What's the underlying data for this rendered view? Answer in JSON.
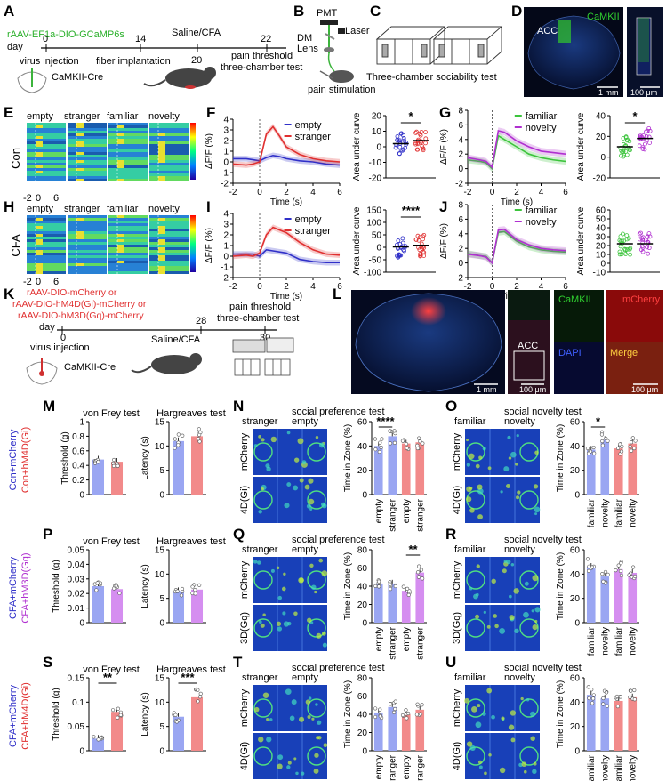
{
  "figure": {
    "panel_letters": [
      "A",
      "B",
      "C",
      "D",
      "E",
      "F",
      "G",
      "H",
      "I",
      "J",
      "K",
      "L",
      "M",
      "N",
      "O",
      "P",
      "Q",
      "R",
      "S",
      "T",
      "U"
    ],
    "colors": {
      "red": "#e03030",
      "blue": "#3030c8",
      "green": "#3cc43c",
      "purple": "#b030d0",
      "bar_blue": "#9aa6f2",
      "bar_red": "#f28a8a",
      "bar_purple": "#d58ef0",
      "heat_bg": "#1840b8"
    }
  },
  "panelA": {
    "construct": "rAAV-EF1a-DIO-GCaMP6s",
    "day_label": "day",
    "timeline_days": [
      "0",
      "14",
      "20",
      "22"
    ],
    "events": [
      "virus injection",
      "fiber implantation",
      "Saline/CFA",
      "pain threshold",
      "three-chamber test"
    ],
    "mouse_label": "CaMKII-Cre"
  },
  "panelB": {
    "labels": [
      "PMT",
      "Laser",
      "DM",
      "Lens"
    ],
    "caption": "pain stimulation"
  },
  "panelC": {
    "caption": "Three-chamber sociability test"
  },
  "panelD": {
    "region": "ACC",
    "marker": "CaMKII",
    "scale1": "1 mm",
    "scale2": "100 μm"
  },
  "heatmapE": {
    "row_label": "Con",
    "columns": [
      "empty",
      "stranger",
      "familiar",
      "novelty"
    ],
    "x_ticks": [
      "-2",
      "0",
      "6"
    ]
  },
  "heatmapH": {
    "row_label": "CFA",
    "columns": [
      "empty",
      "stranger",
      "familiar",
      "novelty"
    ],
    "x_ticks": [
      "-2",
      "0",
      "6"
    ]
  },
  "panelK": {
    "constructs": [
      "rAAV-DIO-mCherry or",
      "rAAV-DIO-hM4D(Gi)-mCherry or",
      "rAAV-DIO-hM3D(Gq)-mCherry"
    ],
    "day_label": "day",
    "timeline_days": [
      "0",
      "28",
      "30"
    ],
    "events": [
      "virus injection",
      "Saline/CFA",
      "pain threshold",
      "three-chamber test"
    ],
    "mouse_label": "CaMKII-Cre"
  },
  "panelL": {
    "region": "ACC",
    "channels": [
      "CaMKII",
      "mCherry",
      "DAPI",
      "Merge"
    ],
    "scales": [
      "1 mm",
      "100 μm",
      "100 μm"
    ]
  },
  "rowlabels": {
    "M": [
      "Con+mCherry",
      "Con+hM4D(Gi)"
    ],
    "P": [
      "CFA+mCherry",
      "CFA+hM3D(Gq)"
    ],
    "S": [
      "CFA+mCherry",
      "CFA+hM4D(Gi)"
    ]
  },
  "occupancy": {
    "pref_header": [
      "stranger",
      "empty"
    ],
    "nov_header": [
      "familiar",
      "novelty"
    ],
    "N": {
      "title": "social preference test",
      "rows": [
        "mCherry",
        "4D(Gi)"
      ]
    },
    "O": {
      "title": "social novelty test",
      "rows": [
        "mCherry",
        "4D(Gi)"
      ]
    },
    "Q": {
      "title": "social preference test",
      "rows": [
        "mCherry",
        "3D(Gq)"
      ]
    },
    "R": {
      "title": "social novelty test",
      "rows": [
        "mCherry",
        "3D(Gq)"
      ]
    },
    "T": {
      "title": "social preference test",
      "rows": [
        "mCherry",
        "4D(Gi)"
      ]
    },
    "U": {
      "title": "social novelty test",
      "rows": [
        "mCherry",
        "4D(Gi)"
      ]
    }
  },
  "chart_data": [
    {
      "id": "F",
      "type": "line",
      "xlabel": "Time (s)",
      "ylabel": "ΔF/F (%)",
      "xlim": [
        -2,
        6
      ],
      "ylim": [
        -2,
        4
      ],
      "x_ticks": [
        -2,
        0,
        2,
        4,
        6
      ],
      "y_ticks": [
        -2,
        -1,
        0,
        1,
        2,
        3,
        4
      ],
      "series": [
        {
          "name": "empty",
          "color": "#3030c8",
          "x": [
            -2,
            -1,
            -0.5,
            0,
            0.5,
            1,
            1.5,
            2,
            3,
            4,
            5,
            6
          ],
          "y": [
            0.3,
            0.3,
            0.2,
            0.1,
            0.4,
            0.6,
            0.5,
            0.3,
            0.1,
            0,
            -0.2,
            -0.3
          ]
        },
        {
          "name": "stranger",
          "color": "#e03030",
          "x": [
            -2,
            -1,
            -0.5,
            0,
            0.5,
            1,
            1.5,
            2,
            3,
            4,
            5,
            6
          ],
          "y": [
            -0.2,
            -0.3,
            -0.2,
            0,
            2.6,
            3.3,
            2.4,
            1.4,
            0.7,
            0.3,
            0.1,
            0
          ]
        }
      ]
    },
    {
      "id": "F_auc",
      "type": "scatter",
      "ylabel": "Area under curve",
      "categories": [
        "empty",
        "stranger"
      ],
      "ylim": [
        -20,
        20
      ],
      "y_ticks": [
        -20,
        -10,
        0,
        10,
        20
      ],
      "means": [
        2,
        4
      ],
      "significance": "*"
    },
    {
      "id": "G",
      "type": "line",
      "xlabel": "Time (s)",
      "ylabel": "ΔF/F (%)",
      "xlim": [
        -2,
        6
      ],
      "ylim": [
        -2,
        8
      ],
      "x_ticks": [
        -2,
        0,
        2,
        4,
        6
      ],
      "y_ticks": [
        -2,
        0,
        2,
        4,
        6,
        8
      ],
      "series": [
        {
          "name": "familiar",
          "color": "#3cc43c",
          "x": [
            -2,
            -1,
            -0.5,
            0,
            0.5,
            1,
            2,
            3,
            4,
            5,
            6
          ],
          "y": [
            1.2,
            1,
            0.8,
            0,
            4.5,
            4,
            3,
            2,
            1.5,
            1.2,
            1
          ]
        },
        {
          "name": "novelty",
          "color": "#b030d0",
          "x": [
            -2,
            -1,
            -0.5,
            0,
            0.5,
            1,
            2,
            3,
            4,
            5,
            6
          ],
          "y": [
            1.5,
            1.2,
            1,
            0.2,
            5.2,
            5,
            3.8,
            3,
            2.4,
            2.2,
            2
          ]
        }
      ]
    },
    {
      "id": "G_auc",
      "type": "scatter",
      "ylabel": "Area under curve",
      "categories": [
        "familiar",
        "novelty"
      ],
      "ylim": [
        -20,
        40
      ],
      "y_ticks": [
        -20,
        0,
        20,
        40
      ],
      "means": [
        10,
        18
      ],
      "significance": "*"
    },
    {
      "id": "I",
      "type": "line",
      "xlabel": "Time (s)",
      "ylabel": "ΔF/F (%)",
      "xlim": [
        -2,
        6
      ],
      "ylim": [
        -2,
        4
      ],
      "x_ticks": [
        -2,
        0,
        2,
        4,
        6
      ],
      "y_ticks": [
        -2,
        -1,
        0,
        1,
        2,
        3,
        4
      ],
      "series": [
        {
          "name": "empty",
          "color": "#3030c8",
          "x": [
            -2,
            -1,
            -0.5,
            0,
            0.5,
            1,
            2,
            3,
            4,
            5,
            6
          ],
          "y": [
            0.2,
            0.2,
            0.2,
            0,
            0.6,
            0.5,
            0.3,
            -0.3,
            -0.5,
            -0.6,
            -0.6
          ]
        },
        {
          "name": "stranger",
          "color": "#e03030",
          "x": [
            -2,
            -1,
            -0.5,
            0,
            0.5,
            1,
            2,
            3,
            4,
            5,
            6
          ],
          "y": [
            0,
            0.1,
            0,
            0.3,
            2,
            2.7,
            2.2,
            1.3,
            0.6,
            0.2,
            0.1
          ]
        }
      ]
    },
    {
      "id": "I_auc",
      "type": "scatter",
      "ylabel": "Area under curve",
      "categories": [
        "empty",
        "stranger"
      ],
      "ylim": [
        -100,
        150
      ],
      "y_ticks": [
        -100,
        -50,
        0,
        50,
        100,
        150
      ],
      "means": [
        2,
        8
      ],
      "significance": "****"
    },
    {
      "id": "J",
      "type": "line",
      "xlabel": "Time (s)",
      "ylabel": "ΔF/F (%)",
      "xlim": [
        -2,
        6
      ],
      "ylim": [
        -2,
        8
      ],
      "x_ticks": [
        -2,
        0,
        2,
        4,
        6
      ],
      "y_ticks": [
        -2,
        0,
        2,
        4,
        6,
        8
      ],
      "series": [
        {
          "name": "familiar",
          "color": "#3cc43c",
          "x": [
            -2,
            -1,
            -0.5,
            0,
            0.5,
            1,
            2,
            3,
            4,
            5,
            6
          ],
          "y": [
            1.3,
            1,
            0.9,
            0,
            4.2,
            4.3,
            3,
            2.2,
            1.8,
            1.6,
            1.5
          ]
        },
        {
          "name": "novelty",
          "color": "#b030d0",
          "x": [
            -2,
            -1,
            -0.5,
            0,
            0.5,
            1,
            2,
            3,
            4,
            5,
            6
          ],
          "y": [
            1.2,
            1,
            0.8,
            0,
            4.5,
            4.6,
            3.2,
            2.5,
            2,
            1.8,
            1.7
          ]
        }
      ]
    },
    {
      "id": "J_auc",
      "type": "scatter",
      "ylabel": "Area under curve",
      "categories": [
        "familiar",
        "novelty"
      ],
      "ylim": [
        -10,
        60
      ],
      "y_ticks": [
        -10,
        0,
        10,
        20,
        30,
        40,
        50,
        60
      ],
      "means": [
        22,
        22
      ]
    },
    {
      "id": "M_vf",
      "type": "bar",
      "title": "von Frey test",
      "ylabel": "Threshold (g)",
      "categories": [
        "mCherry",
        "hM4D(Gi)"
      ],
      "values": [
        0.48,
        0.45
      ],
      "ylim": [
        0,
        1.0
      ],
      "y_ticks": [
        0,
        0.2,
        0.4,
        0.6,
        0.8,
        1.0
      ]
    },
    {
      "id": "M_hg",
      "type": "bar",
      "title": "Hargreaves test",
      "ylabel": "Latency (s)",
      "categories": [
        "mCherry",
        "hM4D(Gi)"
      ],
      "values": [
        11,
        12
      ],
      "ylim": [
        0,
        15
      ],
      "y_ticks": [
        0,
        5,
        10,
        15
      ]
    },
    {
      "id": "N_bar",
      "type": "bar",
      "ylabel": "Time in Zone (%)",
      "categories": [
        "empty",
        "stranger",
        "empty",
        "stranger"
      ],
      "values": [
        40,
        48,
        42,
        43
      ],
      "ylim": [
        0,
        60
      ],
      "y_ticks": [
        0,
        20,
        40,
        60
      ],
      "significance": "****"
    },
    {
      "id": "O_bar",
      "type": "bar",
      "ylabel": "Time in Zone (%)",
      "categories": [
        "familiar",
        "novelty",
        "familiar",
        "novelty"
      ],
      "values": [
        37,
        45,
        38,
        42
      ],
      "ylim": [
        0,
        60
      ],
      "y_ticks": [
        0,
        20,
        40,
        60
      ],
      "significance": "*"
    },
    {
      "id": "P_vf",
      "type": "bar",
      "title": "von Frey test",
      "ylabel": "Threshold (g)",
      "categories": [
        "mCherry",
        "hM3D(Gq)"
      ],
      "values": [
        0.025,
        0.023
      ],
      "ylim": [
        0,
        0.05
      ],
      "y_ticks": [
        0,
        0.01,
        0.02,
        0.03,
        0.04,
        0.05
      ]
    },
    {
      "id": "P_hg",
      "type": "bar",
      "title": "Hargreaves test",
      "ylabel": "Latency (s)",
      "categories": [
        "mCherry",
        "hM3D(Gq)"
      ],
      "values": [
        6.5,
        6.8
      ],
      "ylim": [
        0,
        15
      ],
      "y_ticks": [
        0,
        5,
        10,
        15
      ]
    },
    {
      "id": "Q_bar",
      "type": "bar",
      "ylabel": "Time in Zone (%)",
      "categories": [
        "empty",
        "stranger",
        "empty",
        "stranger"
      ],
      "values": [
        43,
        43,
        35,
        55
      ],
      "ylim": [
        0,
        80
      ],
      "y_ticks": [
        0,
        20,
        40,
        60,
        80
      ],
      "significance": "**"
    },
    {
      "id": "R_bar",
      "type": "bar",
      "ylabel": "Time in Zone (%)",
      "categories": [
        "familiar",
        "novelty",
        "familiar",
        "novelty"
      ],
      "values": [
        46,
        38,
        44,
        41
      ],
      "ylim": [
        0,
        60
      ],
      "y_ticks": [
        0,
        20,
        40,
        60
      ]
    },
    {
      "id": "S_vf",
      "type": "bar",
      "title": "von Frey test",
      "ylabel": "Threshold (g)",
      "categories": [
        "mCherry",
        "hM4D(Gi)"
      ],
      "values": [
        0.025,
        0.08
      ],
      "ylim": [
        0,
        0.15
      ],
      "y_ticks": [
        0,
        0.05,
        0.1,
        0.15
      ],
      "significance": "**"
    },
    {
      "id": "S_hg",
      "type": "bar",
      "title": "Hargreaves test",
      "ylabel": "Latency (s)",
      "categories": [
        "mCherry",
        "hM4D(Gi)"
      ],
      "values": [
        7,
        11
      ],
      "ylim": [
        0,
        15
      ],
      "y_ticks": [
        0,
        5,
        10,
        15
      ],
      "significance": "***"
    },
    {
      "id": "T_bar",
      "type": "bar",
      "ylabel": "Time in Zone (%)",
      "categories": [
        "empty",
        "stranger",
        "empty",
        "stranger"
      ],
      "values": [
        42,
        48,
        40,
        45
      ],
      "ylim": [
        0,
        80
      ],
      "y_ticks": [
        0,
        20,
        40,
        60,
        80
      ]
    },
    {
      "id": "U_bar",
      "type": "bar",
      "ylabel": "Time in Zone (%)",
      "categories": [
        "familiar",
        "novelty",
        "familiar",
        "novelty"
      ],
      "values": [
        46,
        43,
        41,
        44
      ],
      "ylim": [
        0,
        60
      ],
      "y_ticks": [
        0,
        20,
        40,
        60
      ]
    }
  ]
}
